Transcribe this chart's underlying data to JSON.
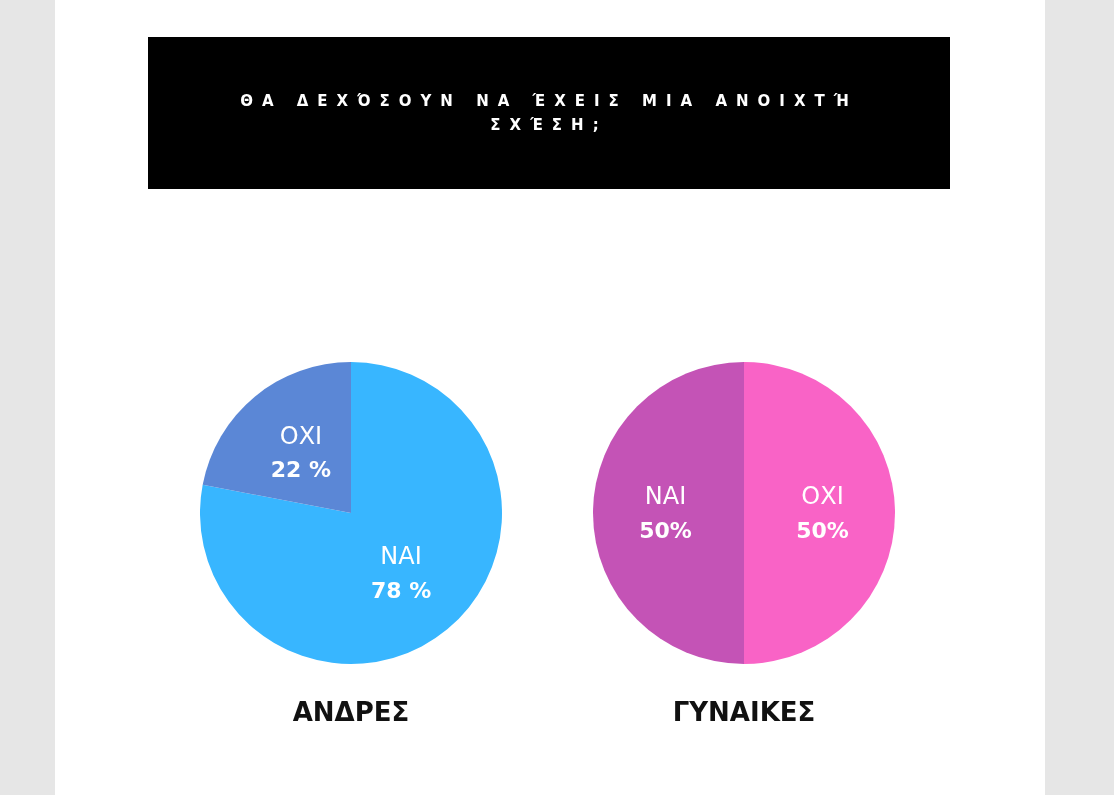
{
  "chart_data": [
    {
      "type": "other",
      "title": "ΘΑ ΔΕΧΌΣΟΥΝ ΝΑ ΈΧΕΙΣ ΜΙΑ ΑΝΟΙΧΤΉ ΣΧΈΣΗ;"
    },
    {
      "type": "pie",
      "title": "ΑΝΔΡΕΣ",
      "categories": [
        "ΝΑΙ",
        "ΟΧΙ"
      ],
      "values": [
        78,
        22
      ],
      "colors": [
        "#38b6ff",
        "#5b87d6"
      ],
      "value_labels": [
        "78 %",
        "22 %"
      ]
    },
    {
      "type": "pie",
      "title": "ΓΥΝΑΙΚΕΣ",
      "categories": [
        "ΟΧΙ",
        "ΝΑΙ"
      ],
      "values": [
        50,
        50
      ],
      "colors": [
        "#f963c6",
        "#c453b6"
      ],
      "value_labels": [
        "50%",
        "50%"
      ]
    }
  ]
}
